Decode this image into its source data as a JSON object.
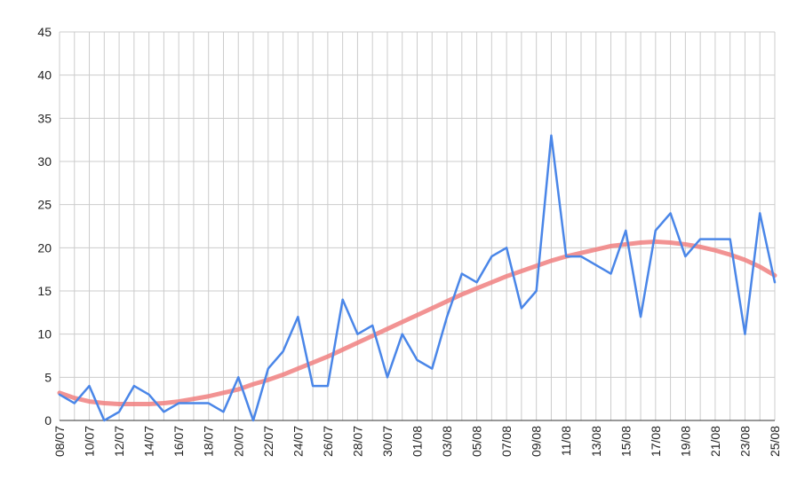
{
  "chart_data": {
    "type": "line",
    "title": "",
    "xlabel": "",
    "ylabel": "",
    "ylim": [
      0,
      45
    ],
    "yticks": [
      0,
      5,
      10,
      15,
      20,
      25,
      30,
      35,
      40,
      45
    ],
    "grid": true,
    "legend": "none",
    "x": [
      "08/07",
      "09/07",
      "10/07",
      "11/07",
      "12/07",
      "13/07",
      "14/07",
      "15/07",
      "16/07",
      "17/07",
      "18/07",
      "19/07",
      "20/07",
      "21/07",
      "22/07",
      "23/07",
      "24/07",
      "25/07",
      "26/07",
      "27/07",
      "28/07",
      "29/07",
      "30/07",
      "31/07",
      "01/08",
      "02/08",
      "03/08",
      "04/08",
      "05/08",
      "06/08",
      "07/08",
      "08/08",
      "09/08",
      "10/08",
      "11/08",
      "12/08",
      "13/08",
      "14/08",
      "15/08",
      "16/08",
      "17/08",
      "18/08",
      "19/08",
      "20/08",
      "21/08",
      "22/08",
      "23/08",
      "24/08",
      "25/08"
    ],
    "xtick_labels": [
      "08/07",
      "10/07",
      "12/07",
      "14/07",
      "16/07",
      "18/07",
      "20/07",
      "22/07",
      "24/07",
      "26/07",
      "28/07",
      "30/07",
      "01/08",
      "03/08",
      "05/08",
      "07/08",
      "09/08",
      "11/08",
      "13/08",
      "15/08",
      "17/08",
      "19/08",
      "21/08",
      "23/08",
      "25/08"
    ],
    "series": [
      {
        "values": [
          3,
          2,
          4,
          0,
          1,
          4,
          3,
          1,
          2,
          2,
          2,
          1,
          5,
          0,
          6,
          8,
          12,
          4,
          4,
          14,
          10,
          11,
          5,
          10,
          7,
          6,
          12,
          17,
          16,
          19,
          20,
          13,
          15,
          33,
          19,
          19,
          18,
          17,
          22,
          12,
          22,
          24,
          19,
          21,
          21,
          21,
          10,
          24,
          16
        ],
        "color": "#4a86e8"
      },
      {
        "values": [
          3.2,
          2.6,
          2.2,
          2.0,
          1.9,
          1.9,
          1.9,
          2.0,
          2.2,
          2.5,
          2.8,
          3.2,
          3.6,
          4.2,
          4.7,
          5.3,
          6.0,
          6.7,
          7.4,
          8.2,
          9.0,
          9.8,
          10.6,
          11.4,
          12.2,
          13.0,
          13.8,
          14.6,
          15.3,
          16.0,
          16.7,
          17.3,
          17.9,
          18.5,
          19.0,
          19.4,
          19.8,
          20.2,
          20.4,
          20.6,
          20.7,
          20.6,
          20.4,
          20.1,
          19.7,
          19.2,
          18.6,
          17.8,
          16.8
        ],
        "color": "#f08080"
      }
    ],
    "colors": {
      "grid": "#cccccc",
      "axis": "#333333",
      "text": "#222222",
      "background": "#ffffff"
    }
  }
}
